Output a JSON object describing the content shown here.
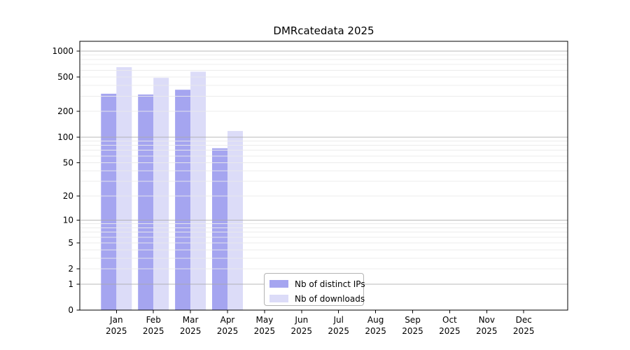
{
  "chart_data": {
    "type": "bar",
    "title": "DMRcatedata 2025",
    "xlabel": "",
    "ylabel": "",
    "year": "2025",
    "months": [
      "Jan",
      "Feb",
      "Mar",
      "Apr",
      "May",
      "Jun",
      "Jul",
      "Aug",
      "Sep",
      "Oct",
      "Nov",
      "Dec"
    ],
    "series": [
      {
        "name": "Nb of distinct IPs",
        "color": "#a5a5f0",
        "values": [
          320,
          314,
          356,
          74,
          0,
          0,
          0,
          0,
          0,
          0,
          0,
          0
        ]
      },
      {
        "name": "Nb of downloads",
        "color": "#dcdcf8",
        "values": [
          652,
          490,
          578,
          118,
          0,
          0,
          0,
          0,
          0,
          0,
          0,
          0
        ]
      }
    ],
    "y_axis": {
      "scale": "log1p",
      "tick_labels": [
        0,
        1,
        2,
        5,
        10,
        20,
        50,
        100,
        200,
        500,
        1000
      ],
      "major_gridlines": [
        1,
        10,
        100,
        1000
      ],
      "minor_gridlines": [
        2,
        3,
        4,
        5,
        6,
        7,
        8,
        9,
        20,
        30,
        40,
        50,
        60,
        70,
        80,
        90,
        200,
        300,
        400,
        500,
        600,
        700,
        800,
        900
      ],
      "range_bottom": 0,
      "range_top": 1300
    },
    "x_axis": {
      "tick_months": "all"
    },
    "legend_position": "lower center",
    "grid": "both",
    "colors": {
      "background": "#ffffff",
      "axis_frame": "#000000",
      "text": "#000000",
      "major_grid": "#a8a8a8",
      "minor_grid": "#ebebeb"
    }
  }
}
